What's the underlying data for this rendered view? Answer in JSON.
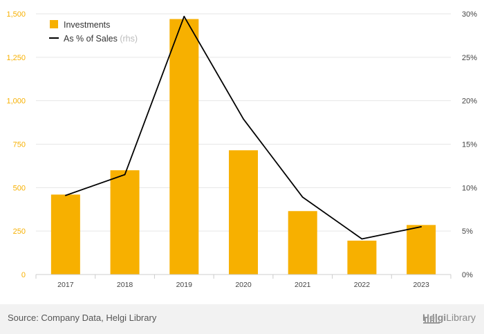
{
  "chart_data": {
    "type": "bar",
    "categories": [
      "2017",
      "2018",
      "2019",
      "2020",
      "2021",
      "2022",
      "2023"
    ],
    "series": [
      {
        "name": "Investments",
        "type": "bar",
        "axis": "left",
        "values": [
          460,
          600,
          1470,
          715,
          365,
          195,
          285
        ],
        "color": "#f7b000"
      },
      {
        "name": "As % of Sales",
        "name_suffix": "(rhs)",
        "type": "line",
        "axis": "right",
        "values": [
          9.1,
          11.5,
          29.7,
          17.9,
          8.9,
          4.1,
          5.5
        ],
        "color": "#000000"
      }
    ],
    "y_left": {
      "range": [
        0,
        1500
      ],
      "ticks": [
        0,
        250,
        500,
        750,
        1000,
        1250,
        1500
      ],
      "tick_labels": [
        "0",
        "250",
        "500",
        "750",
        "1,000",
        "1,250",
        "1,500"
      ],
      "tick_color": "#f7b000"
    },
    "y_right": {
      "range": [
        0,
        30
      ],
      "ticks": [
        0,
        5,
        10,
        15,
        20,
        25,
        30
      ],
      "tick_labels": [
        "0%",
        "5%",
        "10%",
        "15%",
        "20%",
        "25%",
        "30%"
      ]
    },
    "grid": true,
    "legend_position": "top-left"
  },
  "footer": {
    "source": "Source: Company Data, Helgi Library",
    "brand_prefix": "Helgi",
    "brand_suffix": "Library",
    "brand_icon": "library-building-icon"
  }
}
